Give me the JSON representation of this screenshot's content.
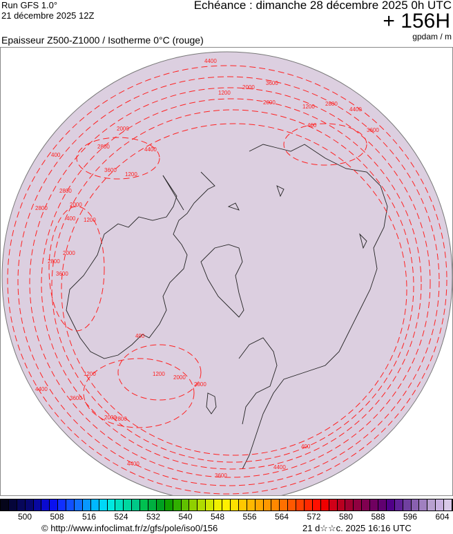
{
  "header": {
    "run_line1": "Run GFS 1.0°",
    "run_line2": "21 décembre 2025 12Z",
    "echeance": "Echéance : dimanche 28 décembre 2025 0h UTC",
    "lead": "+ 156H",
    "title": "Epaisseur Z500-Z1000 / Isotherme 0°C (rouge)",
    "unit": "gpdam / m"
  },
  "map": {
    "background": "#dccfe0",
    "contour_color": "#ff2020",
    "coast_color": "#222222",
    "contour_labels": [
      "4400",
      "3600",
      "2000",
      "1200",
      "2800",
      "400",
      "1200",
      "2000",
      "4400",
      "3600",
      "2800",
      "2000",
      "400",
      "1200",
      "4400",
      "3600",
      "2800",
      "2000",
      "400",
      "2800",
      "1200",
      "2000",
      "2800",
      "3600",
      "4400",
      "3600",
      "2000",
      "1200",
      "2800",
      "400",
      "4400",
      "1200",
      "2000",
      "2800",
      "3600",
      "4400",
      "400"
    ]
  },
  "colorbar": {
    "tick_labels": [
      "500",
      "508",
      "516",
      "524",
      "532",
      "540",
      "548",
      "556",
      "564",
      "572",
      "580",
      "588",
      "596",
      "604"
    ],
    "colors": [
      "#05051a",
      "#05053a",
      "#07075a",
      "#070770",
      "#0808a0",
      "#0a0ad0",
      "#0a10f0",
      "#1030ff",
      "#1050ff",
      "#1070ff",
      "#0898ff",
      "#00b8ff",
      "#00d8f8",
      "#00e8e0",
      "#00e0c0",
      "#00d8a0",
      "#00c888",
      "#00c050",
      "#00b040",
      "#00a020",
      "#10a000",
      "#30b000",
      "#60c000",
      "#90d000",
      "#b0dc00",
      "#d0e800",
      "#f0f000",
      "#fff000",
      "#ffe000",
      "#ffc800",
      "#ffb800",
      "#ffa800",
      "#ff9800",
      "#ff8800",
      "#ff7000",
      "#ff5800",
      "#ff4000",
      "#ff2800",
      "#ff1000",
      "#f00000",
      "#d00018",
      "#b80020",
      "#a00030",
      "#900040",
      "#800050",
      "#700060",
      "#600070",
      "#500088",
      "#602098",
      "#7040a0",
      "#8860b0",
      "#a080c0",
      "#b8a0d0",
      "#c8b0e0",
      "#d8c8e8"
    ]
  },
  "footer": {
    "copyright": "© http://www.infoclimat.fr/z/gfs/pole/iso0/156",
    "generated": "21 d☆☆c. 2025 16:16 UTC"
  }
}
